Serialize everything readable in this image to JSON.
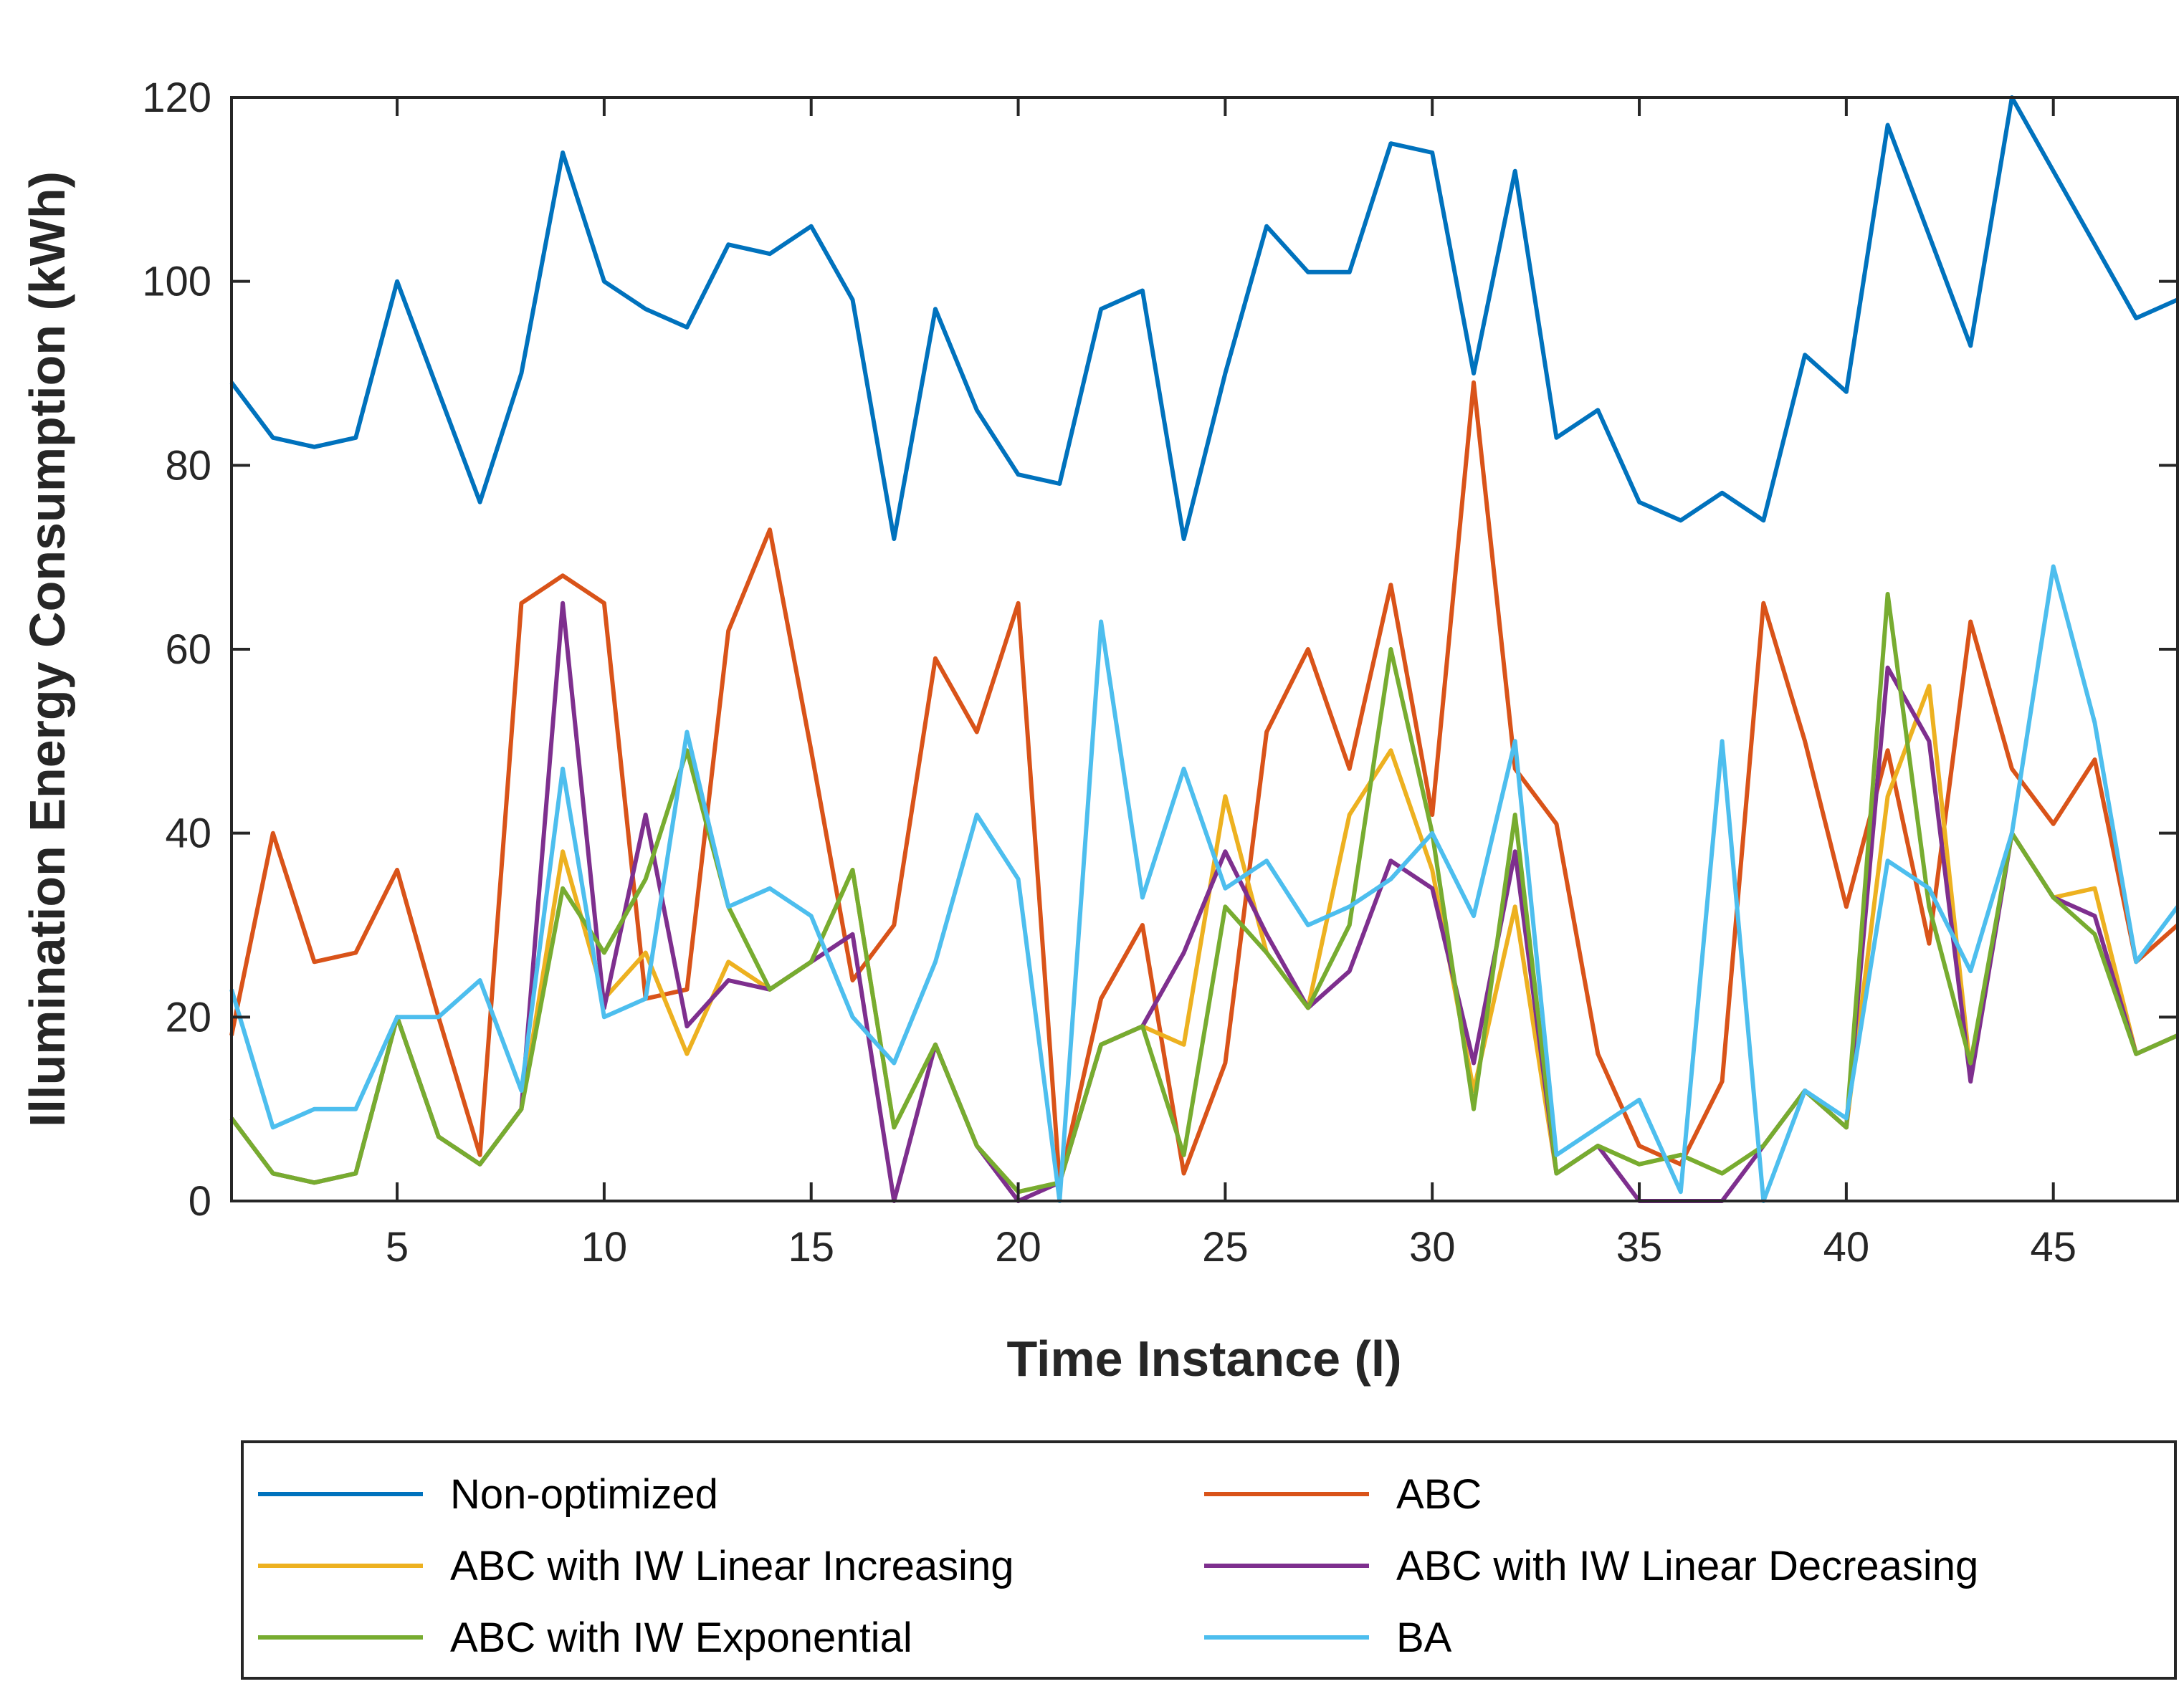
{
  "chart_data": {
    "type": "line",
    "title": "",
    "xlabel": "Time Instance (l)",
    "ylabel": "Illumination Energy Consumption (kWh)",
    "xlim": [
      1,
      48
    ],
    "ylim": [
      0,
      120
    ],
    "xticks": [
      5,
      10,
      15,
      20,
      25,
      30,
      35,
      40,
      45
    ],
    "yticks": [
      0,
      20,
      40,
      60,
      80,
      100,
      120
    ],
    "grid": false,
    "legend_position": "bottom",
    "x": [
      1,
      2,
      3,
      4,
      5,
      6,
      7,
      8,
      9,
      10,
      11,
      12,
      13,
      14,
      15,
      16,
      17,
      18,
      19,
      20,
      21,
      22,
      23,
      24,
      25,
      26,
      27,
      28,
      29,
      30,
      31,
      32,
      33,
      34,
      35,
      36,
      37,
      38,
      39,
      40,
      41,
      42,
      43,
      44,
      45,
      46,
      47,
      48
    ],
    "series": [
      {
        "name": "Non-optimized",
        "color": "#0072BD",
        "values": [
          89,
          83,
          82,
          83,
          100,
          88,
          76,
          90,
          114,
          100,
          97,
          95,
          104,
          103,
          106,
          98,
          72,
          97,
          86,
          79,
          78,
          97,
          99,
          72,
          90,
          106,
          101,
          101,
          115,
          114,
          90,
          112,
          83,
          86,
          76,
          74,
          77,
          74,
          92,
          88,
          117,
          105,
          93,
          120,
          112,
          104,
          96,
          98
        ]
      },
      {
        "name": "ABC",
        "color": "#D95319",
        "values": [
          18,
          40,
          26,
          27,
          36,
          20,
          5,
          65,
          68,
          65,
          22,
          23,
          62,
          73,
          49,
          24,
          30,
          59,
          51,
          65,
          2,
          22,
          30,
          3,
          15,
          51,
          60,
          47,
          67,
          42,
          89,
          47,
          41,
          16,
          6,
          4,
          13,
          65,
          50,
          32,
          49,
          28,
          63,
          47,
          41,
          48,
          26,
          30
        ]
      },
      {
        "name": "ABC with IW Linear Increasing",
        "color": "#EDB120",
        "values": [
          9,
          3,
          2,
          3,
          20,
          7,
          4,
          10,
          38,
          22,
          27,
          16,
          26,
          23,
          26,
          36,
          8,
          17,
          6,
          1,
          2,
          17,
          19,
          17,
          44,
          27,
          21,
          42,
          49,
          36,
          12,
          32,
          3,
          6,
          4,
          5,
          3,
          6,
          12,
          8,
          44,
          56,
          14,
          40,
          33,
          34,
          16,
          18
        ]
      },
      {
        "name": "ABC with IW Linear Decreasing",
        "color": "#7E2F8E",
        "values": [
          9,
          3,
          2,
          3,
          20,
          7,
          4,
          10,
          65,
          21,
          42,
          19,
          24,
          23,
          26,
          29,
          0,
          17,
          6,
          0,
          2,
          17,
          19,
          27,
          38,
          29,
          21,
          25,
          37,
          34,
          15,
          38,
          3,
          6,
          0,
          0,
          0,
          6,
          12,
          8,
          58,
          50,
          13,
          40,
          33,
          31,
          16,
          18
        ]
      },
      {
        "name": "ABC with IW Exponential",
        "color": "#77AC30",
        "values": [
          9,
          3,
          2,
          3,
          20,
          7,
          4,
          10,
          34,
          27,
          35,
          49,
          32,
          23,
          26,
          36,
          8,
          17,
          6,
          1,
          2,
          17,
          19,
          5,
          32,
          27,
          21,
          30,
          60,
          40,
          10,
          42,
          3,
          6,
          4,
          5,
          3,
          6,
          12,
          8,
          66,
          32,
          15,
          40,
          33,
          29,
          16,
          18
        ]
      },
      {
        "name": "BA",
        "color": "#4DBEEE",
        "values": [
          23,
          8,
          10,
          10,
          20,
          20,
          24,
          12,
          47,
          20,
          22,
          51,
          32,
          34,
          31,
          20,
          15,
          26,
          42,
          35,
          0,
          63,
          33,
          47,
          34,
          37,
          30,
          32,
          35,
          40,
          31,
          50,
          5,
          8,
          11,
          1,
          50,
          0,
          12,
          9,
          37,
          34,
          25,
          40,
          69,
          52,
          26,
          32
        ]
      }
    ]
  }
}
